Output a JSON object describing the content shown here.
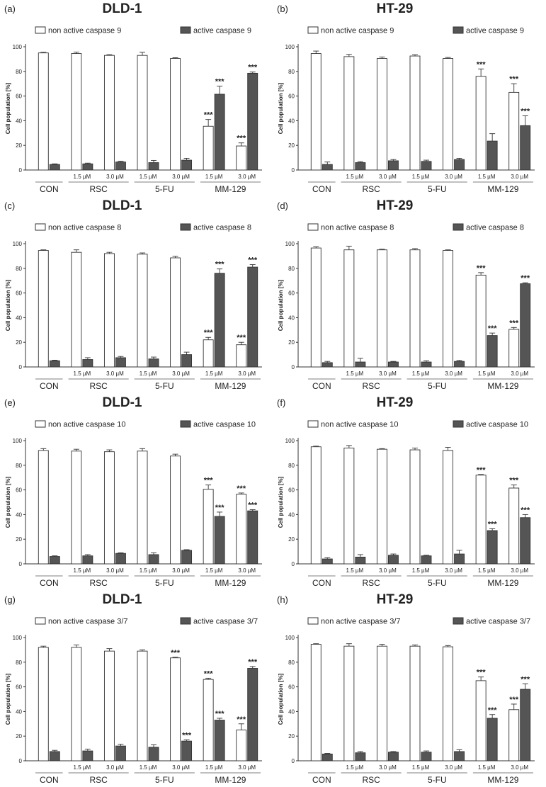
{
  "chart_data": [
    {
      "type": "bar",
      "panel_label": "(a)",
      "title": "DLD-1",
      "ylabel": "Cell population [%]",
      "ylim": [
        0,
        100
      ],
      "yticks": [
        0,
        20,
        40,
        60,
        80,
        100
      ],
      "categories": [
        "",
        "1.5 µM",
        "3.0 µM",
        "1.5 µM",
        "3.0 µM",
        "1.5 µM",
        "3.0 µM"
      ],
      "groups": [
        "CON",
        "RSC",
        "5-FU",
        "MM-129"
      ],
      "series": [
        {
          "name": "non active caspase 9",
          "color": "#ffffff",
          "values": [
            95,
            94.5,
            93,
            93,
            90.5,
            35.5,
            19.5
          ],
          "errors": [
            0.5,
            1.2,
            0.6,
            2.5,
            0.6,
            5.5,
            2.5
          ],
          "significance": [
            "",
            "",
            "",
            "",
            "",
            "***",
            "***"
          ]
        },
        {
          "name": "active caspase 9",
          "color": "#555555",
          "values": [
            4.5,
            5,
            6.5,
            6,
            8,
            61.5,
            78.5
          ],
          "errors": [
            0.5,
            0.6,
            0.6,
            1.8,
            1.5,
            6.5,
            1
          ]
        },
        {
          "significance": [
            "",
            "",
            "",
            "",
            "",
            "***",
            "***"
          ]
        }
      ]
    },
    {
      "type": "bar",
      "panel_label": "(b)",
      "title": "HT-29",
      "ylabel": "Cell population [%]",
      "ylim": [
        0,
        100
      ],
      "yticks": [
        0,
        20,
        40,
        60,
        80,
        100
      ],
      "categories": [
        "",
        "1.5 µM",
        "3.0 µM",
        "1.5 µM",
        "3.0 µM",
        "1.5 µM",
        "3.0 µM"
      ],
      "groups": [
        "CON",
        "RSC",
        "5-FU",
        "MM-129"
      ],
      "series": [
        {
          "name": "non active caspase 9",
          "color": "#ffffff",
          "values": [
            94.5,
            92,
            90.5,
            92.5,
            90.5,
            76,
            63
          ],
          "errors": [
            2,
            1.8,
            1.2,
            1,
            0.8,
            6,
            7
          ],
          "significance": [
            "",
            "",
            "",
            "",
            "",
            "***",
            "***"
          ]
        },
        {
          "name": "active caspase 9",
          "color": "#555555",
          "values": [
            4.5,
            6,
            7.5,
            7,
            8.5,
            23.5,
            36
          ],
          "errors": [
            2,
            0.8,
            1,
            1,
            1,
            6,
            8
          ],
          "significance": [
            "",
            "",
            "",
            "",
            "",
            "",
            "***"
          ]
        }
      ]
    },
    {
      "type": "bar",
      "panel_label": "(c)",
      "title": "DLD-1",
      "ylabel": "Cell population [%]",
      "ylim": [
        0,
        100
      ],
      "yticks": [
        0,
        20,
        40,
        60,
        80,
        100
      ],
      "categories": [
        "",
        "1.5 µM",
        "3.0 µM",
        "1.5 µM",
        "3.0 µM",
        "1.5 µM",
        "3.0 µM"
      ],
      "groups": [
        "CON",
        "RSC",
        "5-FU",
        "MM-129"
      ],
      "series": [
        {
          "name": "non active caspase 8",
          "color": "#ffffff",
          "values": [
            94.5,
            93,
            92,
            91.5,
            88.5,
            22,
            18
          ],
          "errors": [
            0.5,
            2,
            1,
            1,
            1.2,
            2,
            2
          ],
          "significance": [
            "",
            "",
            "",
            "",
            "",
            "***",
            "***"
          ]
        },
        {
          "name": "active caspase 8",
          "color": "#555555",
          "values": [
            5,
            6,
            7.5,
            6.5,
            10,
            76,
            81
          ],
          "errors": [
            0.5,
            1.5,
            1,
            1.5,
            2,
            3.5,
            2
          ],
          "significance": [
            "",
            "",
            "",
            "",
            "",
            "***",
            "***"
          ]
        }
      ]
    },
    {
      "type": "bar",
      "panel_label": "(d)",
      "title": "HT-29",
      "ylabel": "Cell population [%]",
      "ylim": [
        0,
        100
      ],
      "yticks": [
        0,
        20,
        40,
        60,
        80,
        100
      ],
      "categories": [
        "",
        "1.5 µM",
        "3.0 µM",
        "1.5 µM",
        "3.0 µM",
        "1.5 µM",
        "3.0 µM"
      ],
      "groups": [
        "CON",
        "RSC",
        "5-FU",
        "MM-129"
      ],
      "series": [
        {
          "name": "non  active caspase 8",
          "color": "#ffffff",
          "values": [
            96.5,
            95,
            95,
            95,
            94.5,
            74.5,
            30.5
          ],
          "errors": [
            1,
            3,
            0.5,
            1,
            0.5,
            2,
            1.5
          ],
          "significance": [
            "",
            "",
            "",
            "",
            "",
            "***",
            "***"
          ]
        },
        {
          "name": "active caspase 8",
          "color": "#555555",
          "values": [
            3.5,
            4,
            4,
            4,
            4.5,
            25.5,
            67.5
          ],
          "errors": [
            1,
            3,
            0.5,
            1,
            0.8,
            2,
            0.8
          ],
          "significance": [
            "",
            "",
            "",
            "",
            "",
            "***",
            "***"
          ]
        }
      ]
    },
    {
      "type": "bar",
      "panel_label": "(e)",
      "title": "DLD-1",
      "ylabel": "Cell population [%]",
      "ylim": [
        0,
        100
      ],
      "yticks": [
        0,
        20,
        40,
        60,
        80,
        100
      ],
      "categories": [
        "",
        "1.5 µM",
        "3.0 µM",
        "1.5 µM",
        "3.0 µM",
        "1.5 µM",
        "3.0 µM"
      ],
      "groups": [
        "CON",
        "RSC",
        "5-FU",
        "MM-129"
      ],
      "series": [
        {
          "name": "non active caspase 10",
          "color": "#ffffff",
          "values": [
            92,
            91.5,
            91,
            91.5,
            87.5,
            60.5,
            56.5
          ],
          "errors": [
            1.5,
            1.5,
            1.5,
            2,
            1.5,
            3.5,
            1
          ],
          "significance": [
            "",
            "",
            "",
            "",
            "",
            "***",
            "***"
          ]
        },
        {
          "name": "active  caspase 10",
          "color": "#555555",
          "values": [
            6,
            6.5,
            8.5,
            7.5,
            11,
            38.5,
            43
          ],
          "errors": [
            0.5,
            1,
            0.5,
            1.5,
            0.5,
            3.5,
            1
          ],
          "significance": [
            "",
            "",
            "",
            "",
            "",
            "***",
            "***"
          ]
        }
      ]
    },
    {
      "type": "bar",
      "panel_label": "(f)",
      "title": "HT-29",
      "ylabel": "Cell population [%]",
      "ylim": [
        0,
        100
      ],
      "yticks": [
        0,
        20,
        40,
        60,
        80,
        100
      ],
      "categories": [
        "",
        "1.5 µM",
        "3.0 µM",
        "1.5 µM",
        "3.0 µM",
        "1.5 µM",
        "3.0 µM"
      ],
      "groups": [
        "CON",
        "RSC",
        "5-FU",
        "MM-129"
      ],
      "series": [
        {
          "name": "non  active caspase 10",
          "color": "#ffffff",
          "values": [
            95,
            94,
            93,
            92.5,
            92,
            72,
            61.5
          ],
          "errors": [
            0.5,
            2,
            0.5,
            1.5,
            2.5,
            0.5,
            2.5
          ],
          "significance": [
            "",
            "",
            "",
            "",
            "",
            "***",
            "***"
          ]
        },
        {
          "name": "active caspase 10",
          "color": "#555555",
          "values": [
            4,
            5.5,
            7,
            6.5,
            8,
            27,
            37.5
          ],
          "errors": [
            1,
            2,
            1,
            0.5,
            3,
            1.5,
            2.5
          ],
          "significance": [
            "",
            "",
            "",
            "",
            "",
            "***",
            "***"
          ]
        }
      ]
    },
    {
      "type": "bar",
      "panel_label": "(g)",
      "title": "DLD-1",
      "ylabel": "Cell population [%]",
      "ylim": [
        0,
        100
      ],
      "yticks": [
        0,
        20,
        40,
        60,
        80,
        100
      ],
      "categories": [
        "",
        "1.5 µM",
        "3.0 µM",
        "1.5 µM",
        "3.0 µM",
        "1.5 µM",
        "3.0 µM"
      ],
      "groups": [
        "CON",
        "RSC",
        "5-FU",
        "MM-129"
      ],
      "series": [
        {
          "name": "non active caspase 3/7",
          "color": "#ffffff",
          "values": [
            92,
            92,
            89,
            89,
            83.5,
            66,
            25
          ],
          "errors": [
            1,
            2,
            2,
            1,
            0.5,
            1,
            5
          ],
          "significance": [
            "",
            "",
            "",
            "",
            "***",
            "***",
            "***"
          ]
        },
        {
          "name": "active  caspase 3/7",
          "color": "#555555",
          "values": [
            7.5,
            8,
            12,
            11,
            16,
            33,
            75
          ],
          "errors": [
            1,
            1.5,
            1.5,
            2,
            1,
            1.5,
            1.5
          ],
          "significance": [
            "",
            "",
            "",
            "",
            "***",
            "***",
            "***"
          ]
        }
      ]
    },
    {
      "type": "bar",
      "panel_label": "(h)",
      "title": "HT-29",
      "ylabel": "Cell population [%]",
      "ylim": [
        0,
        100
      ],
      "yticks": [
        0,
        20,
        40,
        60,
        80,
        100
      ],
      "categories": [
        "",
        "1.5 µM",
        "3.0 µM",
        "1.5 µM",
        "3.0 µM",
        "1.5 µM",
        "3.0 µM"
      ],
      "groups": [
        "CON",
        "RSC",
        "5-FU",
        "MM-129"
      ],
      "series": [
        {
          "name": "non active caspase 3/7",
          "color": "#ffffff",
          "values": [
            94.5,
            93,
            93,
            93,
            92.5,
            65,
            41.5
          ],
          "errors": [
            0.5,
            2,
            1.5,
            1,
            1,
            3,
            4.5
          ],
          "significance": [
            "",
            "",
            "",
            "",
            "",
            "***",
            "***"
          ]
        },
        {
          "name": "active  caspase 3/7",
          "color": "#555555",
          "values": [
            5.5,
            6.5,
            7,
            7,
            7.5,
            34.5,
            58
          ],
          "errors": [
            0.5,
            1,
            0.5,
            1,
            1.5,
            3,
            4.5
          ],
          "significance": [
            "",
            "",
            "",
            "",
            "",
            "***",
            "***"
          ]
        }
      ]
    }
  ]
}
